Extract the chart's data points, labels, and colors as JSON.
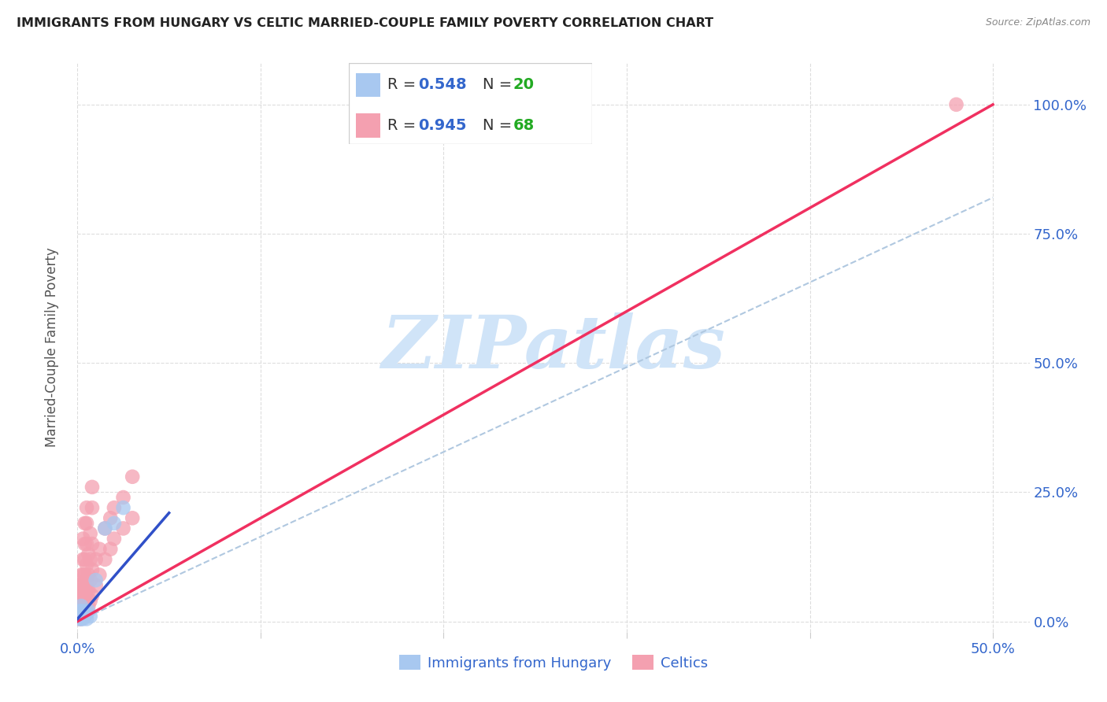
{
  "title": "IMMIGRANTS FROM HUNGARY VS CELTIC MARRIED-COUPLE FAMILY POVERTY CORRELATION CHART",
  "source": "Source: ZipAtlas.com",
  "ylabel": "Married-Couple Family Poverty",
  "xlim": [
    0.0,
    0.52
  ],
  "ylim": [
    -0.02,
    1.08
  ],
  "xticks": [
    0.0,
    0.1,
    0.2,
    0.3,
    0.4,
    0.5
  ],
  "xtick_labels": [
    "0.0%",
    "",
    "",
    "",
    "",
    "50.0%"
  ],
  "ytick_vals_right": [
    0.0,
    0.25,
    0.5,
    0.75,
    1.0
  ],
  "ytick_labels_right": [
    "0.0%",
    "25.0%",
    "50.0%",
    "75.0%",
    "100.0%"
  ],
  "hungary_color": "#a8c8f0",
  "celtics_color": "#f4a0b0",
  "hungary_line_color": "#3050c8",
  "celtics_line_color": "#f03060",
  "dashed_line_color": "#b0c8e0",
  "legend_R_hungary": "0.548",
  "legend_N_hungary": "20",
  "legend_R_celtics": "0.945",
  "legend_N_celtics": "68",
  "legend_color_R": "#3366cc",
  "legend_color_N": "#22aa22",
  "watermark_text": "ZIPatlas",
  "watermark_color": "#d0e4f8",
  "hungary_line_x0": 0.0,
  "hungary_line_y0": 0.005,
  "hungary_line_x1": 0.05,
  "hungary_line_y1": 0.21,
  "celtics_line_x0": 0.0,
  "celtics_line_y0": 0.0,
  "celtics_line_x1": 0.5,
  "celtics_line_y1": 1.0,
  "dashed_line_x0": 0.0,
  "dashed_line_y0": 0.0,
  "dashed_line_x1": 0.5,
  "dashed_line_y1": 0.82,
  "hungary_scatter": [
    [
      0.001,
      0.005
    ],
    [
      0.001,
      0.01
    ],
    [
      0.001,
      0.02
    ],
    [
      0.002,
      0.005
    ],
    [
      0.002,
      0.01
    ],
    [
      0.002,
      0.02
    ],
    [
      0.002,
      0.03
    ],
    [
      0.003,
      0.005
    ],
    [
      0.003,
      0.01
    ],
    [
      0.003,
      0.015
    ],
    [
      0.004,
      0.01
    ],
    [
      0.004,
      0.02
    ],
    [
      0.005,
      0.005
    ],
    [
      0.005,
      0.015
    ],
    [
      0.006,
      0.02
    ],
    [
      0.007,
      0.01
    ],
    [
      0.01,
      0.08
    ],
    [
      0.015,
      0.18
    ],
    [
      0.02,
      0.19
    ],
    [
      0.025,
      0.22
    ]
  ],
  "celtics_scatter": [
    [
      0.001,
      0.005
    ],
    [
      0.001,
      0.01
    ],
    [
      0.001,
      0.02
    ],
    [
      0.001,
      0.03
    ],
    [
      0.001,
      0.04
    ],
    [
      0.001,
      0.05
    ],
    [
      0.001,
      0.06
    ],
    [
      0.001,
      0.07
    ],
    [
      0.002,
      0.005
    ],
    [
      0.002,
      0.01
    ],
    [
      0.002,
      0.02
    ],
    [
      0.002,
      0.03
    ],
    [
      0.002,
      0.04
    ],
    [
      0.002,
      0.05
    ],
    [
      0.002,
      0.07
    ],
    [
      0.002,
      0.09
    ],
    [
      0.003,
      0.01
    ],
    [
      0.003,
      0.02
    ],
    [
      0.003,
      0.03
    ],
    [
      0.003,
      0.05
    ],
    [
      0.003,
      0.07
    ],
    [
      0.003,
      0.09
    ],
    [
      0.003,
      0.12
    ],
    [
      0.003,
      0.16
    ],
    [
      0.004,
      0.01
    ],
    [
      0.004,
      0.02
    ],
    [
      0.004,
      0.04
    ],
    [
      0.004,
      0.06
    ],
    [
      0.004,
      0.09
    ],
    [
      0.004,
      0.12
    ],
    [
      0.004,
      0.15
    ],
    [
      0.004,
      0.19
    ],
    [
      0.005,
      0.02
    ],
    [
      0.005,
      0.04
    ],
    [
      0.005,
      0.06
    ],
    [
      0.005,
      0.08
    ],
    [
      0.005,
      0.11
    ],
    [
      0.005,
      0.15
    ],
    [
      0.005,
      0.19
    ],
    [
      0.005,
      0.22
    ],
    [
      0.006,
      0.03
    ],
    [
      0.006,
      0.06
    ],
    [
      0.006,
      0.09
    ],
    [
      0.006,
      0.13
    ],
    [
      0.007,
      0.04
    ],
    [
      0.007,
      0.08
    ],
    [
      0.007,
      0.12
    ],
    [
      0.007,
      0.17
    ],
    [
      0.008,
      0.05
    ],
    [
      0.008,
      0.1
    ],
    [
      0.008,
      0.15
    ],
    [
      0.008,
      0.22
    ],
    [
      0.01,
      0.07
    ],
    [
      0.01,
      0.12
    ],
    [
      0.012,
      0.09
    ],
    [
      0.012,
      0.14
    ],
    [
      0.015,
      0.12
    ],
    [
      0.015,
      0.18
    ],
    [
      0.018,
      0.14
    ],
    [
      0.018,
      0.2
    ],
    [
      0.02,
      0.16
    ],
    [
      0.02,
      0.22
    ],
    [
      0.025,
      0.18
    ],
    [
      0.025,
      0.24
    ],
    [
      0.03,
      0.2
    ],
    [
      0.03,
      0.28
    ],
    [
      0.008,
      0.26
    ],
    [
      0.48,
      1.0
    ]
  ]
}
